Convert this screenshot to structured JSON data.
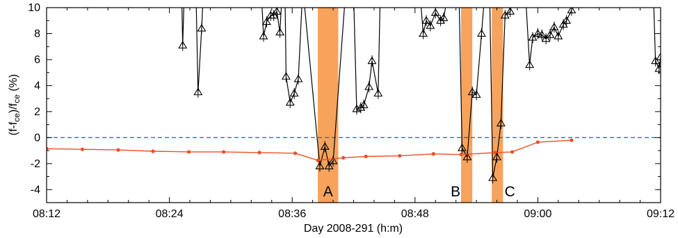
{
  "chart_data": {
    "type": "line",
    "xlabel": "Day 2008-291 (h:m)",
    "ylabel_parts": [
      "(f-f",
      "ce",
      ")/f",
      "ce",
      " (%)"
    ],
    "xlim": [
      12,
      72
    ],
    "ylim": [
      -5,
      10
    ],
    "x_ticks": [
      {
        "value": 12,
        "label": "08:12"
      },
      {
        "value": 24,
        "label": "08:24"
      },
      {
        "value": 36,
        "label": "08:36"
      },
      {
        "value": 48,
        "label": "08:48"
      },
      {
        "value": 60,
        "label": "09:00"
      },
      {
        "value": 72,
        "label": "09:12"
      }
    ],
    "y_ticks": [
      {
        "value": -4,
        "label": "-4"
      },
      {
        "value": -2,
        "label": "-2"
      },
      {
        "value": 0,
        "label": "0"
      },
      {
        "value": 2,
        "label": "2"
      },
      {
        "value": 4,
        "label": "4"
      },
      {
        "value": 6,
        "label": "6"
      },
      {
        "value": 8,
        "label": "8"
      },
      {
        "value": 10,
        "label": "10"
      }
    ],
    "reference_line": {
      "y": 0,
      "style": "dashed",
      "color": "#1f77b4"
    },
    "shaded_intervals": [
      {
        "label": "A",
        "x0": 38.5,
        "x1": 40.5,
        "color": "#f7a35c"
      },
      {
        "label": "B",
        "x0": 52.5,
        "x1": 53.6,
        "color": "#f7a35c"
      },
      {
        "label": "C",
        "x0": 55.5,
        "x1": 56.6,
        "color": "#f7a35c"
      }
    ],
    "series": [
      {
        "marker": "triangle",
        "color": "#000000",
        "error_bars": true,
        "points": [
          [
            25.2,
            11
          ],
          [
            25.3,
            7.1
          ],
          [
            25.45,
            11
          ],
          [
            26.6,
            11
          ],
          [
            26.8,
            3.5
          ],
          [
            27.15,
            8.4
          ],
          [
            27.3,
            11
          ],
          [
            33.0,
            11
          ],
          [
            33.2,
            7.8
          ],
          [
            33.5,
            8.9
          ],
          [
            33.9,
            9.4
          ],
          [
            34.2,
            9.4
          ],
          [
            34.5,
            9.7
          ],
          [
            34.8,
            8.1
          ],
          [
            35.0,
            11
          ],
          [
            35.3,
            11
          ],
          [
            35.4,
            4.7
          ],
          [
            35.8,
            2.7
          ],
          [
            36.2,
            3.4
          ],
          [
            36.6,
            4.5
          ],
          [
            37.0,
            11
          ],
          [
            37.1,
            11
          ],
          [
            38.7,
            -2.2
          ],
          [
            39.2,
            -0.7
          ],
          [
            39.6,
            -2.2
          ],
          [
            40.0,
            -1.8
          ],
          [
            41.2,
            11
          ],
          [
            42.0,
            11
          ],
          [
            42.3,
            2.2
          ],
          [
            42.7,
            2.3
          ],
          [
            43.0,
            2.5
          ],
          [
            43.5,
            3.9
          ],
          [
            43.8,
            5.9
          ],
          [
            44.4,
            3.4
          ],
          [
            44.6,
            11
          ],
          [
            48.5,
            11
          ],
          [
            48.8,
            8.0
          ],
          [
            49.1,
            9.0
          ],
          [
            49.5,
            8.6
          ],
          [
            50.0,
            9.6
          ],
          [
            50.5,
            9.0
          ],
          [
            50.8,
            9.2
          ],
          [
            51.2,
            11
          ],
          [
            52.3,
            11
          ],
          [
            52.6,
            -0.8
          ],
          [
            53.1,
            -1.5
          ],
          [
            53.6,
            3.5
          ],
          [
            54.0,
            3.3
          ],
          [
            54.5,
            8.0
          ],
          [
            54.8,
            11
          ],
          [
            55.3,
            11
          ],
          [
            55.6,
            -3.1
          ],
          [
            56.0,
            -1.5
          ],
          [
            56.4,
            1.1
          ],
          [
            56.8,
            9.4
          ],
          [
            57.3,
            9.7
          ],
          [
            57.5,
            11
          ],
          [
            58.8,
            11
          ],
          [
            59.2,
            5.6
          ],
          [
            59.5,
            7.7
          ],
          [
            60.0,
            8.0
          ],
          [
            60.4,
            7.9
          ],
          [
            60.8,
            7.6
          ],
          [
            61.2,
            7.9
          ],
          [
            61.6,
            8.5
          ],
          [
            62.0,
            7.8
          ],
          [
            62.5,
            8.7
          ],
          [
            62.8,
            9.0
          ],
          [
            63.3,
            9.8
          ],
          [
            63.6,
            11
          ],
          [
            71.3,
            11
          ],
          [
            71.5,
            5.9
          ],
          [
            71.85,
            5.3
          ],
          [
            72.0,
            6.2
          ]
        ]
      },
      {
        "marker": "dot",
        "color": "#f04e23",
        "points": [
          [
            12.0,
            -0.85
          ],
          [
            15.5,
            -0.9
          ],
          [
            19.0,
            -0.95
          ],
          [
            22.4,
            -1.05
          ],
          [
            25.9,
            -1.1
          ],
          [
            29.3,
            -1.1
          ],
          [
            32.8,
            -1.15
          ],
          [
            36.3,
            -1.2
          ],
          [
            38.5,
            -1.75
          ],
          [
            41.0,
            -1.55
          ],
          [
            43.2,
            -1.45
          ],
          [
            46.5,
            -1.4
          ],
          [
            49.8,
            -1.25
          ],
          [
            52.5,
            -1.3
          ],
          [
            55.8,
            -1.15
          ],
          [
            57.5,
            -1.1
          ],
          [
            60.0,
            -0.35
          ],
          [
            63.3,
            -0.2
          ]
        ]
      }
    ]
  }
}
